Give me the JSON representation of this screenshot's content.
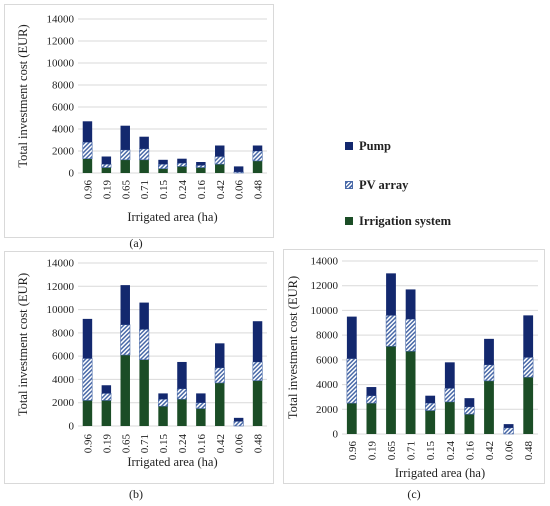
{
  "colors": {
    "pump": "#13286e",
    "pv": "#4a6aa8",
    "irrigation": "#1b4d26",
    "grid": "#d9d9d9"
  },
  "legend": {
    "pump": "Pump",
    "pv": "PV array",
    "irrigation": "Irrigation system"
  },
  "chart_data": [
    {
      "type": "bar",
      "stacked": true,
      "caption": "(a)",
      "xlabel": "Irrigated area (ha)",
      "ylabel": "Total investment cost (EUR)",
      "ylim": [
        0,
        14000
      ],
      "yticks": [
        0,
        2000,
        4000,
        6000,
        8000,
        10000,
        12000,
        14000
      ],
      "categories": [
        "0.96",
        "0.19",
        "0.65",
        "0.71",
        "0.15",
        "0.24",
        "0.16",
        "0.42",
        "0.06",
        "0.48"
      ],
      "series": [
        {
          "name": "Irrigation system",
          "values": [
            1300,
            500,
            1200,
            1200,
            400,
            600,
            500,
            800,
            0,
            1100
          ]
        },
        {
          "name": "PV array",
          "values": [
            1500,
            300,
            900,
            1000,
            400,
            300,
            200,
            700,
            100,
            900
          ]
        },
        {
          "name": "Pump",
          "values": [
            1900,
            700,
            2200,
            1100,
            400,
            400,
            300,
            1000,
            500,
            500
          ]
        }
      ]
    },
    {
      "type": "bar",
      "stacked": true,
      "caption": "(b)",
      "xlabel": "Irrigated area (ha)",
      "ylabel": "Total investment cost (EUR)",
      "ylim": [
        0,
        14000
      ],
      "yticks": [
        0,
        2000,
        4000,
        6000,
        8000,
        10000,
        12000,
        14000
      ],
      "categories": [
        "0.96",
        "0.19",
        "0.65",
        "0.71",
        "0.15",
        "0.24",
        "0.16",
        "0.42",
        "0.06",
        "0.48"
      ],
      "series": [
        {
          "name": "Irrigation system",
          "values": [
            2200,
            2200,
            6100,
            5700,
            1700,
            2300,
            1500,
            3700,
            0,
            3900
          ]
        },
        {
          "name": "PV array",
          "values": [
            3600,
            600,
            2600,
            2600,
            600,
            900,
            500,
            1300,
            400,
            1600
          ]
        },
        {
          "name": "Pump",
          "values": [
            3400,
            700,
            3400,
            2300,
            500,
            2300,
            800,
            2100,
            300,
            3500
          ]
        }
      ]
    },
    {
      "type": "bar",
      "stacked": true,
      "caption": "(c)",
      "xlabel": "Irrigated area (ha)",
      "ylabel": "Total investment cost (EUR)",
      "ylim": [
        0,
        14000
      ],
      "yticks": [
        0,
        2000,
        4000,
        6000,
        8000,
        10000,
        12000,
        14000
      ],
      "categories": [
        "0.96",
        "0.19",
        "0.65",
        "0.71",
        "0.15",
        "0.24",
        "0.16",
        "0.42",
        "0.06",
        "0.48"
      ],
      "series": [
        {
          "name": "Irrigation system",
          "values": [
            2500,
            2500,
            7100,
            6700,
            1900,
            2600,
            1600,
            4300,
            0,
            4600
          ]
        },
        {
          "name": "PV array",
          "values": [
            3600,
            600,
            2500,
            2600,
            600,
            1100,
            600,
            1300,
            500,
            1600
          ]
        },
        {
          "name": "Pump",
          "values": [
            3400,
            700,
            3400,
            2400,
            600,
            2100,
            700,
            2100,
            300,
            3400
          ]
        }
      ]
    }
  ]
}
